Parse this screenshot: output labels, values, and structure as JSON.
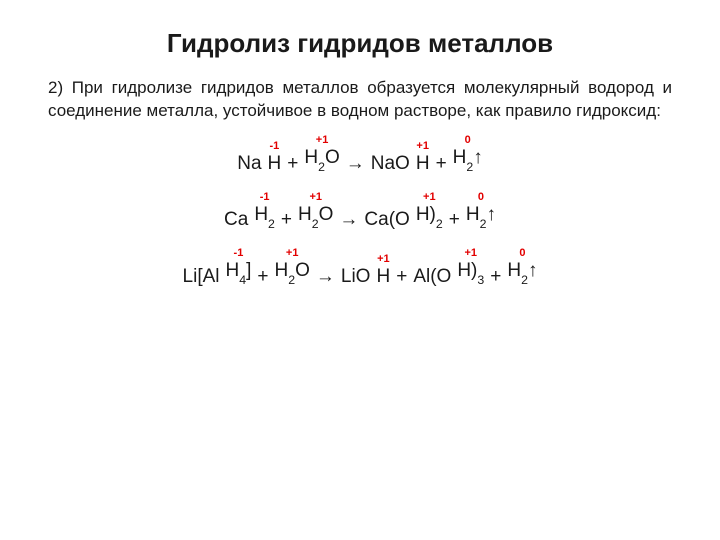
{
  "title": "Гидролиз гидридов металлов",
  "paragraph": "2) При гидролизе гидридов металлов образуется молекулярный водород и соединение металла, устойчивое в водном растворе, как правило гидроксид:",
  "colors": {
    "text": "#1a1a1a",
    "oxidation": "#e20000",
    "background": "#ffffff"
  },
  "equations": [
    {
      "tokens": [
        {
          "main_html": "Na",
          "oxidation": "",
          "has_ox": false
        },
        {
          "main_html": "H",
          "oxidation": "-1",
          "has_ox": true
        },
        {
          "main_html": "+",
          "oxidation": "",
          "has_ox": false
        },
        {
          "main_html": "H<sub>2</sub>O",
          "oxidation": "+1",
          "has_ox": true
        },
        {
          "main_html": "→",
          "oxidation": "",
          "has_ox": false
        },
        {
          "main_html": "NaO",
          "oxidation": "",
          "has_ox": false
        },
        {
          "main_html": "H",
          "oxidation": "+1",
          "has_ox": true
        },
        {
          "main_html": "+",
          "oxidation": "",
          "has_ox": false
        },
        {
          "main_html": "H<sub>2</sub>↑",
          "oxidation": "0",
          "has_ox": true
        }
      ]
    },
    {
      "tokens": [
        {
          "main_html": "Ca",
          "oxidation": "",
          "has_ox": false
        },
        {
          "main_html": "H<sub>2</sub>",
          "oxidation": "-1",
          "has_ox": true
        },
        {
          "main_html": "+",
          "oxidation": "",
          "has_ox": false
        },
        {
          "main_html": "H<sub>2</sub>O",
          "oxidation": "+1",
          "has_ox": true
        },
        {
          "main_html": "→",
          "oxidation": "",
          "has_ox": false
        },
        {
          "main_html": "Ca(O",
          "oxidation": "",
          "has_ox": false
        },
        {
          "main_html": "H)<sub>2</sub>",
          "oxidation": "+1",
          "has_ox": true
        },
        {
          "main_html": "+",
          "oxidation": "",
          "has_ox": false
        },
        {
          "main_html": "H<sub>2</sub>↑",
          "oxidation": "0",
          "has_ox": true
        }
      ]
    },
    {
      "tokens": [
        {
          "main_html": "Li[Al",
          "oxidation": "",
          "has_ox": false
        },
        {
          "main_html": "H<sub>4</sub>]",
          "oxidation": "-1",
          "has_ox": true
        },
        {
          "main_html": "+",
          "oxidation": "",
          "has_ox": false
        },
        {
          "main_html": "H<sub>2</sub>O",
          "oxidation": "+1",
          "has_ox": true
        },
        {
          "main_html": "→",
          "oxidation": "",
          "has_ox": false
        },
        {
          "main_html": "LiO",
          "oxidation": "",
          "has_ox": false
        },
        {
          "main_html": "H",
          "oxidation": "+1",
          "has_ox": true
        },
        {
          "main_html": "+",
          "oxidation": "",
          "has_ox": false
        },
        {
          "main_html": "Al(O",
          "oxidation": "",
          "has_ox": false
        },
        {
          "main_html": "H)<sub>3</sub>",
          "oxidation": "+1",
          "has_ox": true
        },
        {
          "main_html": "+",
          "oxidation": "",
          "has_ox": false
        },
        {
          "main_html": "H<sub>2</sub>↑",
          "oxidation": "0",
          "has_ox": true
        }
      ]
    }
  ]
}
